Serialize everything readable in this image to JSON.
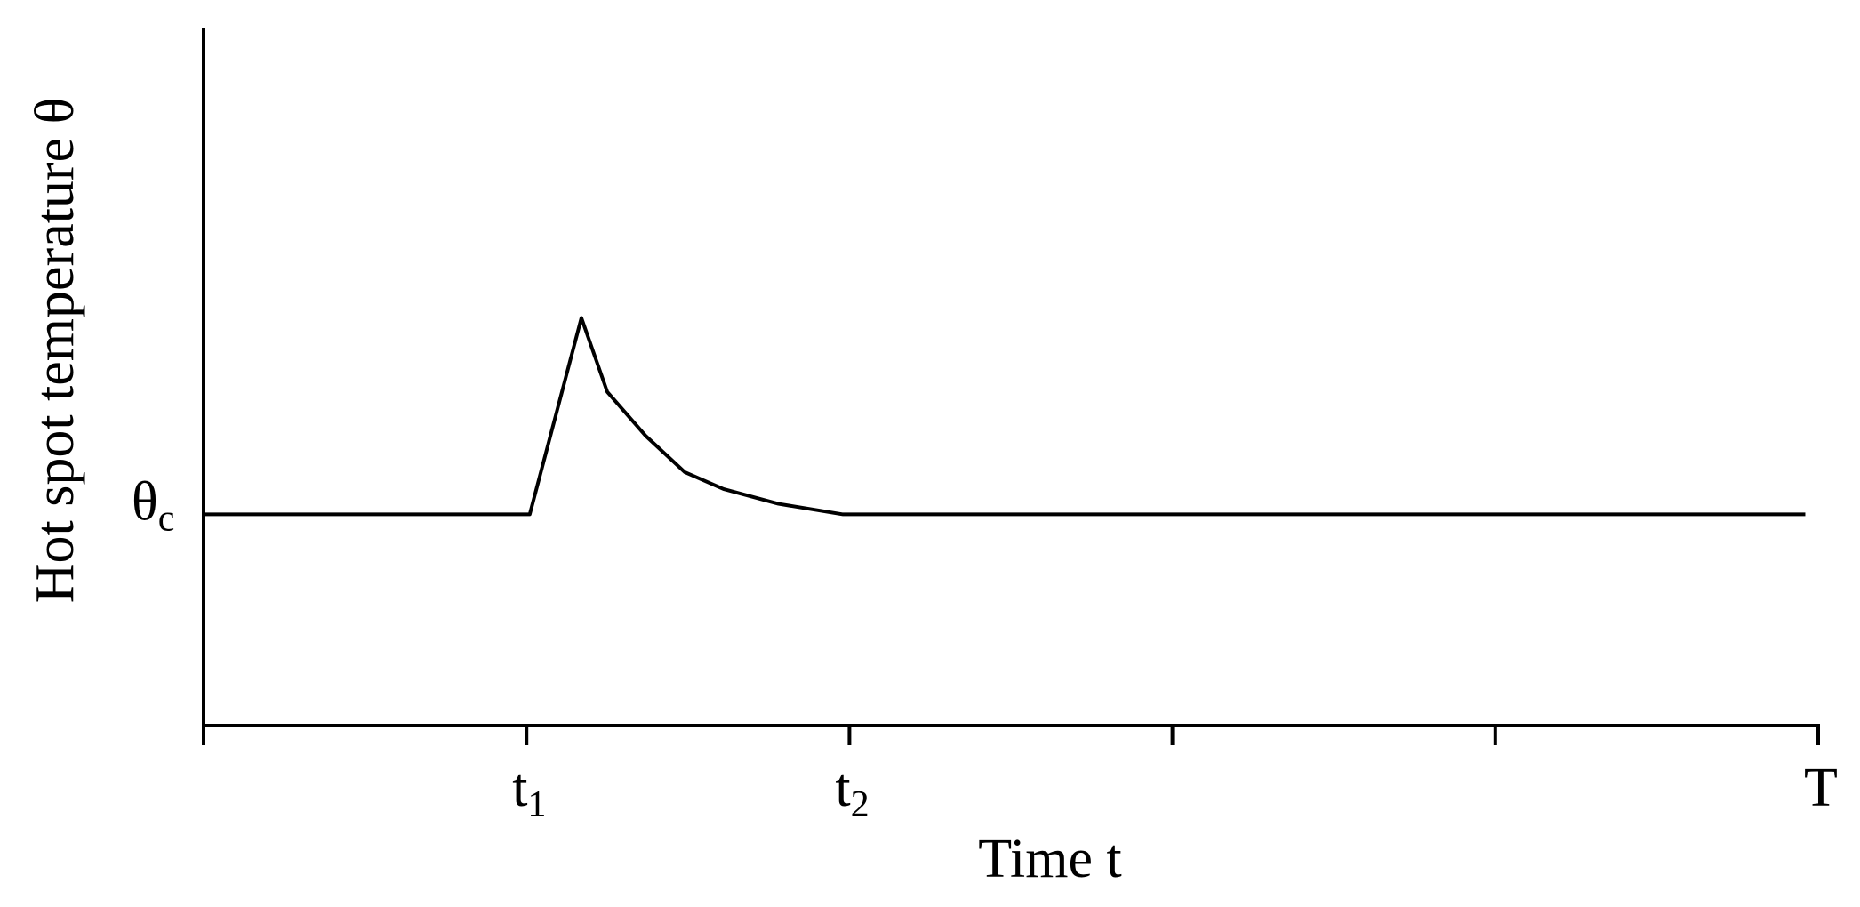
{
  "chart_data": {
    "type": "line",
    "x_label": "Time t",
    "y_label": "Hot spot temperature θ",
    "xlim": [
      0,
      5
    ],
    "xticks": [
      {
        "value": 0,
        "label": null
      },
      {
        "value": 1,
        "label": "t1"
      },
      {
        "value": 2,
        "label": "t2"
      },
      {
        "value": 3,
        "label": null
      },
      {
        "value": 4,
        "label": null
      },
      {
        "value": 5,
        "label": "T"
      }
    ],
    "ylim": [
      0,
      3.3
    ],
    "yticks": [
      {
        "value": 1,
        "label": "θc"
      }
    ],
    "grid": false,
    "series": [
      {
        "color": "#000000",
        "x": [
          0,
          1.01,
          1.17,
          1.25,
          1.37,
          1.49,
          1.61,
          1.78,
          1.98,
          4.96
        ],
        "values": [
          1,
          1,
          1.93,
          1.58,
          1.37,
          1.2,
          1.12,
          1.05,
          1,
          1
        ]
      }
    ]
  }
}
